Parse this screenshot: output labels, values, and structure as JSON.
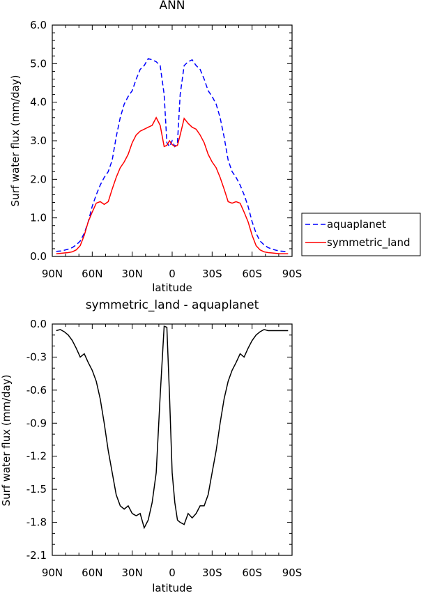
{
  "chart_data": [
    {
      "type": "line",
      "title": "ANN",
      "xlabel": "latitude",
      "ylabel": "Surf water flux (mm/day)",
      "xlim": [
        -90,
        90
      ],
      "ylim": [
        0.0,
        6.0
      ],
      "xticks": [
        -90,
        -60,
        -30,
        0,
        30,
        60,
        90
      ],
      "xtick_labels": [
        "90N",
        "60N",
        "30N",
        "0",
        "30S",
        "60S",
        "90S"
      ],
      "yticks": [
        0.0,
        1.0,
        2.0,
        3.0,
        4.0,
        5.0,
        6.0
      ],
      "ytick_labels": [
        "0.0",
        "1.0",
        "2.0",
        "3.0",
        "4.0",
        "5.0",
        "6.0"
      ],
      "legend": "right",
      "series": [
        {
          "name": "aquaplanet",
          "color": "#0000ff",
          "dash": "dashed",
          "x": [
            -87,
            -84,
            -81,
            -78,
            -75,
            -72,
            -69,
            -66,
            -63,
            -60,
            -57,
            -54,
            -51,
            -48,
            -45,
            -42,
            -39,
            -36,
            -33,
            -30,
            -27,
            -24,
            -21,
            -18,
            -15,
            -12,
            -9,
            -6,
            -4,
            -2,
            0,
            2,
            4,
            6,
            9,
            12,
            15,
            18,
            21,
            24,
            27,
            30,
            33,
            36,
            39,
            42,
            45,
            48,
            51,
            54,
            57,
            60,
            63,
            66,
            69,
            72,
            75,
            78,
            81,
            84,
            87
          ],
          "y": [
            0.13,
            0.14,
            0.16,
            0.19,
            0.23,
            0.3,
            0.4,
            0.6,
            0.9,
            1.3,
            1.6,
            1.85,
            2.05,
            2.2,
            2.5,
            3.1,
            3.6,
            3.95,
            4.15,
            4.3,
            4.6,
            4.85,
            4.95,
            5.13,
            5.1,
            5.05,
            4.95,
            4.2,
            2.95,
            2.85,
            3.0,
            2.85,
            2.95,
            4.2,
            4.95,
            5.05,
            5.1,
            4.95,
            4.85,
            4.6,
            4.3,
            4.15,
            3.95,
            3.6,
            3.1,
            2.5,
            2.2,
            2.05,
            1.85,
            1.6,
            1.3,
            0.9,
            0.6,
            0.4,
            0.3,
            0.23,
            0.19,
            0.16,
            0.14,
            0.13,
            0.13
          ]
        },
        {
          "name": "symmetric_land",
          "color": "#ff0000",
          "dash": "solid",
          "x": [
            -87,
            -84,
            -81,
            -78,
            -75,
            -72,
            -69,
            -66,
            -63,
            -60,
            -57,
            -54,
            -51,
            -48,
            -45,
            -42,
            -39,
            -36,
            -33,
            -30,
            -27,
            -24,
            -21,
            -18,
            -15,
            -12,
            -9,
            -6,
            -4,
            -2,
            0,
            2,
            4,
            6,
            9,
            12,
            15,
            18,
            21,
            24,
            27,
            30,
            33,
            36,
            39,
            42,
            45,
            48,
            51,
            54,
            57,
            60,
            63,
            66,
            69,
            72,
            75,
            78,
            81,
            84,
            87
          ],
          "y": [
            0.07,
            0.08,
            0.09,
            0.1,
            0.12,
            0.17,
            0.28,
            0.55,
            0.9,
            1.15,
            1.38,
            1.42,
            1.35,
            1.42,
            1.75,
            2.05,
            2.3,
            2.45,
            2.65,
            2.95,
            3.15,
            3.25,
            3.3,
            3.35,
            3.4,
            3.6,
            3.4,
            2.85,
            2.88,
            3.0,
            2.9,
            2.85,
            2.88,
            3.15,
            3.58,
            3.45,
            3.35,
            3.3,
            3.15,
            2.95,
            2.65,
            2.45,
            2.3,
            2.05,
            1.75,
            1.42,
            1.38,
            1.42,
            1.38,
            1.15,
            0.9,
            0.55,
            0.28,
            0.17,
            0.12,
            0.1,
            0.09,
            0.08,
            0.07,
            0.07,
            0.07
          ]
        }
      ]
    },
    {
      "type": "line",
      "title": "symmetric_land - aquaplanet",
      "xlabel": "latitude",
      "ylabel": "Surf water flux (mm/day)",
      "xlim": [
        -90,
        90
      ],
      "ylim": [
        -2.1,
        0.0
      ],
      "xticks": [
        -90,
        -60,
        -30,
        0,
        30,
        60,
        90
      ],
      "xtick_labels": [
        "90N",
        "60N",
        "30N",
        "0",
        "30S",
        "60S",
        "90S"
      ],
      "yticks": [
        0.0,
        -0.3,
        -0.6,
        -0.9,
        -1.2,
        -1.5,
        -1.8,
        -2.1
      ],
      "ytick_labels": [
        "0.0",
        "-0.3",
        "-0.6",
        "-0.9",
        "-1.2",
        "-1.5",
        "-1.8",
        "-2.1"
      ],
      "series": [
        {
          "color": "#000000",
          "dash": "solid",
          "x": [
            -87,
            -84,
            -81,
            -78,
            -75,
            -72,
            -69,
            -66,
            -63,
            -60,
            -57,
            -54,
            -51,
            -48,
            -45,
            -42,
            -39,
            -36,
            -33,
            -30,
            -27,
            -24,
            -21,
            -18,
            -15,
            -12,
            -9,
            -6,
            -4,
            -2,
            0,
            2,
            4,
            6,
            9,
            12,
            15,
            18,
            21,
            24,
            27,
            30,
            33,
            36,
            39,
            42,
            45,
            48,
            51,
            54,
            57,
            60,
            63,
            66,
            69,
            72,
            75,
            78,
            81,
            84,
            87
          ],
          "y": [
            -0.06,
            -0.05,
            -0.07,
            -0.1,
            -0.15,
            -0.22,
            -0.3,
            -0.27,
            -0.35,
            -0.42,
            -0.52,
            -0.68,
            -0.9,
            -1.15,
            -1.35,
            -1.55,
            -1.65,
            -1.68,
            -1.65,
            -1.72,
            -1.74,
            -1.72,
            -1.85,
            -1.78,
            -1.62,
            -1.35,
            -0.65,
            -0.02,
            -0.03,
            -0.65,
            -1.35,
            -1.62,
            -1.78,
            -1.8,
            -1.82,
            -1.72,
            -1.76,
            -1.72,
            -1.65,
            -1.65,
            -1.55,
            -1.35,
            -1.15,
            -0.9,
            -0.68,
            -0.52,
            -0.42,
            -0.35,
            -0.27,
            -0.3,
            -0.22,
            -0.15,
            -0.1,
            -0.07,
            -0.05,
            -0.06,
            -0.06,
            -0.06,
            -0.06,
            -0.06,
            -0.06
          ]
        }
      ]
    }
  ]
}
